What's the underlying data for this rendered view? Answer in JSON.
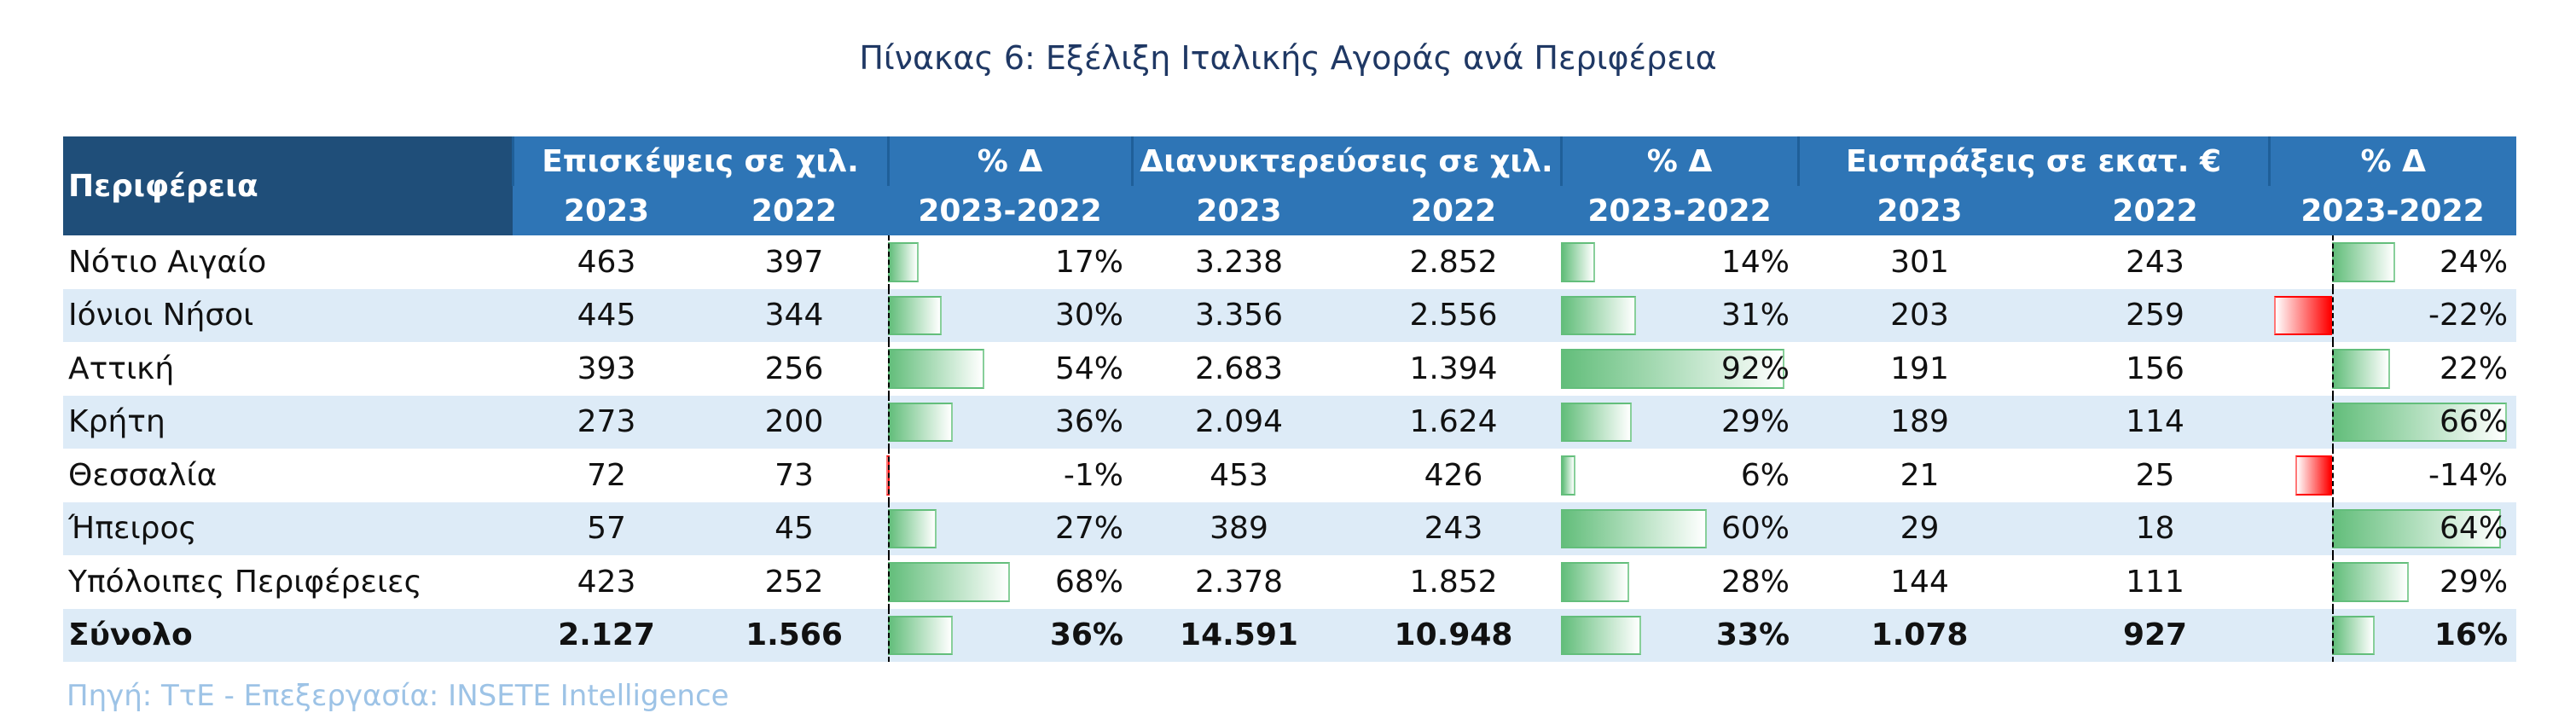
{
  "title": "Πίνακας 6: Εξέλιξη Ιταλικής Αγοράς ανά Περιφέρεια",
  "header": {
    "region": "Περιφέρεια",
    "visits": "Επισκέψεις σε χιλ.",
    "overnights": "Διανυκτερεύσεις σε χιλ.",
    "receipts": "Εισπράξεις σε εκατ.  €",
    "pct": "% Δ",
    "y2023": "2023",
    "y2022": "2022",
    "range": "2023-2022"
  },
  "rows": [
    {
      "region": "Νότιο Αιγαίο",
      "v23": "463",
      "v22": "397",
      "vp": "17%",
      "vpv": 17,
      "o23": "3.238",
      "o22": "2.852",
      "op": "14%",
      "opv": 14,
      "r23": "301",
      "r22": "243",
      "rp": "24%",
      "rpv": 24
    },
    {
      "region": "Ιόνιοι Νήσοι",
      "v23": "445",
      "v22": "344",
      "vp": "30%",
      "vpv": 30,
      "o23": "3.356",
      "o22": "2.556",
      "op": "31%",
      "opv": 31,
      "r23": "203",
      "r22": "259",
      "rp": "-22%",
      "rpv": -22
    },
    {
      "region": "Αττική",
      "v23": "393",
      "v22": "256",
      "vp": "54%",
      "vpv": 54,
      "o23": "2.683",
      "o22": "1.394",
      "op": "92%",
      "opv": 92,
      "r23": "191",
      "r22": "156",
      "rp": "22%",
      "rpv": 22
    },
    {
      "region": "Κρήτη",
      "v23": "273",
      "v22": "200",
      "vp": "36%",
      "vpv": 36,
      "o23": "2.094",
      "o22": "1.624",
      "op": "29%",
      "opv": 29,
      "r23": "189",
      "r22": "114",
      "rp": "66%",
      "rpv": 66
    },
    {
      "region": "Θεσσαλία",
      "v23": "72",
      "v22": "73",
      "vp": "-1%",
      "vpv": -1,
      "o23": "453",
      "o22": "426",
      "op": "6%",
      "opv": 6,
      "r23": "21",
      "r22": "25",
      "rp": "-14%",
      "rpv": -14
    },
    {
      "region": "Ήπειρος",
      "v23": "57",
      "v22": "45",
      "vp": "27%",
      "vpv": 27,
      "o23": "389",
      "o22": "243",
      "op": "60%",
      "opv": 60,
      "r23": "29",
      "r22": "18",
      "rp": "64%",
      "rpv": 64
    },
    {
      "region": "Υπόλοιπες Περιφέρειες",
      "v23": "423",
      "v22": "252",
      "vp": "68%",
      "vpv": 68,
      "o23": "2.378",
      "o22": "1.852",
      "op": "28%",
      "opv": 28,
      "r23": "144",
      "r22": "111",
      "rp": "29%",
      "rpv": 29
    }
  ],
  "total": {
    "region": "Σύνολο",
    "v23": "2.127",
    "v22": "1.566",
    "vp": "36%",
    "vpv": 36,
    "o23": "14.591",
    "o22": "10.948",
    "op": "33%",
    "opv": 33,
    "r23": "1.078",
    "r22": "927",
    "rp": "16%",
    "rpv": 16
  },
  "source": "Πηγή: ΤτΕ - Επεξεργασία: INSETE Intelligence",
  "colors": {
    "positive": "#63be7b",
    "negative": "#ff0000"
  }
}
